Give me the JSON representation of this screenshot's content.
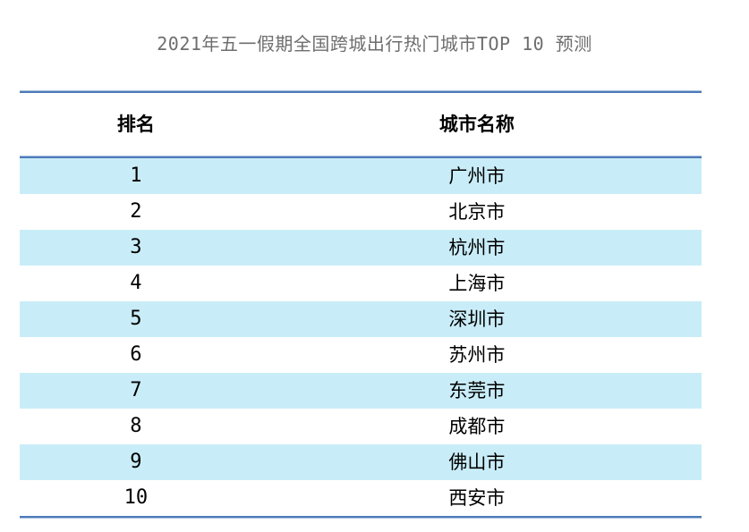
{
  "title": "2021年五一假期全国跨城出行热门城市TOP 10 预测",
  "colors": {
    "rule_blue": "#4d7bb9",
    "rule_highlight": "#a6bedd",
    "row_alt_blue": "#c9edf8",
    "title_gray": "#6e6e6e",
    "cell_text": "#000000",
    "background": "#ffffff"
  },
  "chart_data": {
    "type": "table",
    "title": "2021年五一假期全国跨城出行热门城市TOP 10 预测",
    "columns": [
      "排名",
      "城市名称"
    ],
    "rows": [
      [
        "1",
        "广州市"
      ],
      [
        "2",
        "北京市"
      ],
      [
        "3",
        "杭州市"
      ],
      [
        "4",
        "上海市"
      ],
      [
        "5",
        "深圳市"
      ],
      [
        "6",
        "苏州市"
      ],
      [
        "7",
        "东莞市"
      ],
      [
        "8",
        "成都市"
      ],
      [
        "9",
        "佛山市"
      ],
      [
        "10",
        "西安市"
      ]
    ],
    "layout": {
      "header_row": true,
      "alternating_row_shading": "odd rows light blue starting at rank 1",
      "rules": [
        "above header",
        "below header",
        "below last row"
      ]
    }
  }
}
